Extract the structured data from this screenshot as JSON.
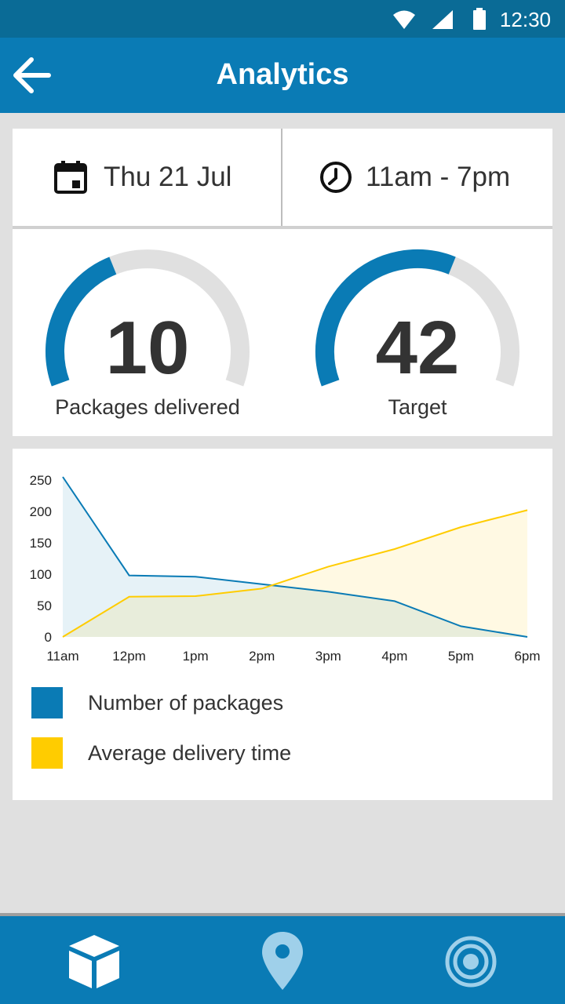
{
  "status_bar": {
    "time": "12:30",
    "icons": [
      "wifi-icon",
      "signal-icon",
      "battery-icon"
    ]
  },
  "app_bar": {
    "title": "Analytics",
    "back_icon": "arrow-back-icon"
  },
  "filters": {
    "date": "Thu 21 Jul",
    "time_range": "11am - 7pm",
    "date_icon": "calendar-icon",
    "time_icon": "clock-icon"
  },
  "gauges": [
    {
      "value": "10",
      "label": "Packages delivered",
      "fill_fraction": 0.4
    },
    {
      "value": "42",
      "label": "Target",
      "fill_fraction": 0.6
    }
  ],
  "colors": {
    "primary": "#0a7bb5",
    "accent": "#ffcc00",
    "track": "#e0e0e0"
  },
  "chart_data": {
    "type": "area",
    "x": [
      "11am",
      "12pm",
      "1pm",
      "2pm",
      "3pm",
      "4pm",
      "5pm",
      "6pm"
    ],
    "series": [
      {
        "name": "Number of packages",
        "color": "#0a7bb5",
        "values": [
          255,
          98,
          96,
          84,
          72,
          57,
          17,
          0
        ]
      },
      {
        "name": "Average delivery time",
        "color": "#ffcc00",
        "values": [
          0,
          64,
          65,
          77,
          112,
          140,
          175,
          202
        ]
      }
    ],
    "yticks": [
      "250",
      "200",
      "150",
      "100",
      "50",
      "0"
    ],
    "ylim": [
      0,
      250
    ],
    "legend_position": "bottom"
  },
  "bottom_nav": [
    {
      "icon": "package-icon"
    },
    {
      "icon": "location-pin-icon"
    },
    {
      "icon": "target-icon"
    }
  ]
}
